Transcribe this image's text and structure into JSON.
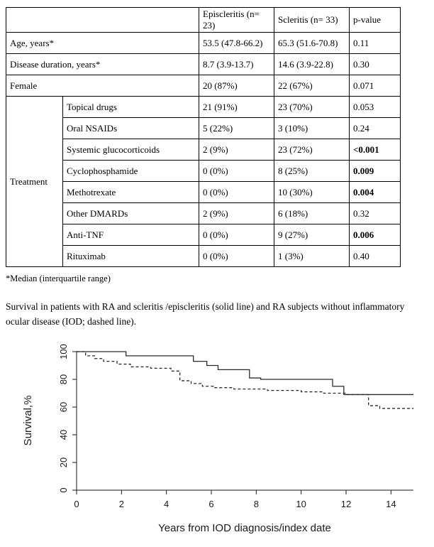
{
  "table": {
    "headers": {
      "blank": "",
      "episcleritis": "Episcleritis (n= 23)",
      "scleritis": "Scleritis (n= 33)",
      "pvalue": "p-value"
    },
    "simple_rows": [
      {
        "label": "Age, years*",
        "episcleritis": "53.5 (47.8-66.2)",
        "scleritis": "65.3 (51.6-70.8)",
        "p": "0.11",
        "p_bold": false
      },
      {
        "label": "Disease duration, years*",
        "episcleritis": "8.7 (3.9-13.7)",
        "scleritis": "14.6 (3.9-22.8)",
        "p": "0.30",
        "p_bold": false
      },
      {
        "label": "Female",
        "episcleritis": "20 (87%)",
        "scleritis": "22 (67%)",
        "p": "0.071",
        "p_bold": false
      }
    ],
    "treatment_label": "Treatment",
    "treatment_rows": [
      {
        "label": "Topical drugs",
        "episcleritis": "21 (91%)",
        "scleritis": "23 (70%)",
        "p": "0.053",
        "p_bold": false
      },
      {
        "label": "Oral NSAIDs",
        "episcleritis": "5 (22%)",
        "scleritis": "3 (10%)",
        "p": "0.24",
        "p_bold": false
      },
      {
        "label": "Systemic glucocorticoids",
        "episcleritis": "2 (9%)",
        "scleritis": "23 (72%)",
        "p": "<0.001",
        "p_bold": true
      },
      {
        "label": "Cyclophosphamide",
        "episcleritis": "0 (0%)",
        "scleritis": "8 (25%)",
        "p": "0.009",
        "p_bold": true
      },
      {
        "label": "Methotrexate",
        "episcleritis": "0 (0%)",
        "scleritis": "10 (30%)",
        "p": "0.004",
        "p_bold": true
      },
      {
        "label": "Other DMARDs",
        "episcleritis": "2 (9%)",
        "scleritis": "6 (18%)",
        "p": "0.32",
        "p_bold": false
      },
      {
        "label": "Anti-TNF",
        "episcleritis": "0 (0%)",
        "scleritis": "9 (27%)",
        "p": "0.006",
        "p_bold": true
      },
      {
        "label": "Rituximab",
        "episcleritis": "0 (0%)",
        "scleritis": "1 (3%)",
        "p": "0.40",
        "p_bold": false
      }
    ]
  },
  "footnote": "*Median (interquartile range)",
  "caption": "Survival in patients with RA and scleritis /episcleritis (solid line) and RA subjects without inflammatory ocular disease (IOD; dashed line).",
  "chart_data": {
    "type": "line",
    "subtype": "kaplan-meier-step",
    "title": "",
    "xlabel": "Years from IOD diagnosis/index date",
    "ylabel": "Survival,%",
    "xlim": [
      0,
      15
    ],
    "ylim": [
      0,
      100
    ],
    "x_ticks": [
      0,
      2,
      4,
      6,
      8,
      10,
      12,
      14
    ],
    "y_ticks": [
      0,
      20,
      40,
      60,
      80,
      100
    ],
    "grid": false,
    "legend": "none (line styles described in caption)",
    "series": [
      {
        "name": "RA with scleritis/episcleritis",
        "style": "solid",
        "steps": [
          [
            0,
            100
          ],
          [
            2.2,
            97
          ],
          [
            5.2,
            93
          ],
          [
            5.8,
            90
          ],
          [
            6.3,
            87
          ],
          [
            7.7,
            81
          ],
          [
            8.2,
            80
          ],
          [
            11.4,
            75
          ],
          [
            11.9,
            69
          ]
        ]
      },
      {
        "name": "RA without inflammatory ocular disease (IOD)",
        "style": "dashed",
        "steps": [
          [
            0,
            100
          ],
          [
            0.4,
            97
          ],
          [
            0.8,
            95
          ],
          [
            1.2,
            93
          ],
          [
            1.8,
            91
          ],
          [
            2.4,
            89
          ],
          [
            3.3,
            88
          ],
          [
            4.2,
            86
          ],
          [
            4.6,
            79
          ],
          [
            5.1,
            77
          ],
          [
            5.6,
            75
          ],
          [
            6.1,
            74
          ],
          [
            7.0,
            73
          ],
          [
            8.5,
            72
          ],
          [
            10.0,
            71
          ],
          [
            11.0,
            70
          ],
          [
            12.0,
            69
          ],
          [
            13.0,
            61
          ],
          [
            13.5,
            59
          ]
        ]
      }
    ]
  }
}
